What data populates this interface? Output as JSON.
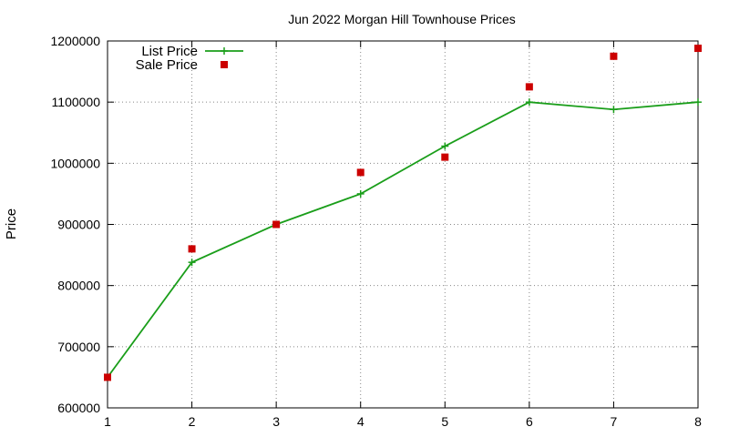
{
  "chart_data": {
    "type": "line",
    "title": "Jun 2022 Morgan Hill Townhouse Prices",
    "xlabel": "",
    "ylabel": "Price",
    "x": [
      1,
      2,
      3,
      4,
      5,
      6,
      7,
      8
    ],
    "xlim": [
      1,
      8
    ],
    "ylim": [
      600000,
      1200000
    ],
    "x_ticks": [
      "1",
      "2",
      "3",
      "4",
      "5",
      "6",
      "7",
      "8"
    ],
    "y_ticks": [
      "600000",
      "700000",
      "800000",
      "900000",
      "1000000",
      "1100000",
      "1200000"
    ],
    "grid": true,
    "legend_position": "top-left",
    "series": [
      {
        "name": "List Price",
        "style": "line-with-plus-markers",
        "color": "#1a9e1a",
        "values": [
          650000,
          838000,
          900000,
          950000,
          1028000,
          1100000,
          1088000,
          1100000
        ]
      },
      {
        "name": "Sale Price",
        "style": "square-markers",
        "color": "#cc0000",
        "values": [
          650000,
          860000,
          900000,
          985000,
          1010000,
          1125000,
          1175000,
          1188000
        ]
      }
    ]
  }
}
